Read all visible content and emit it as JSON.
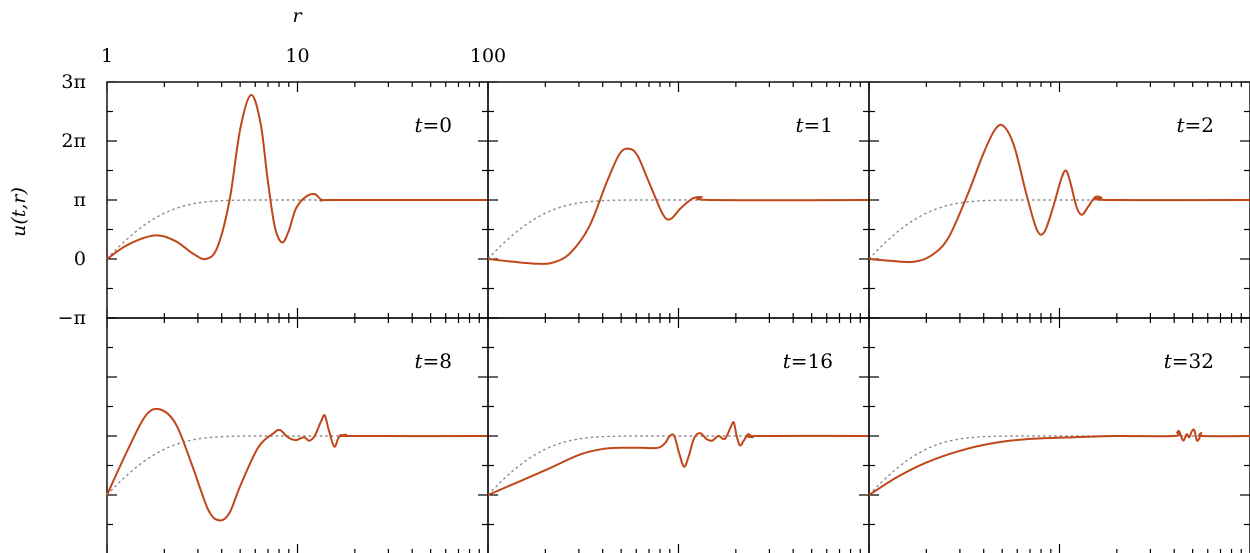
{
  "chart_data": {
    "type": "line",
    "xlabel": "r",
    "ylabel": "u(t,r)",
    "xscale": "log",
    "xlim": [
      1,
      100
    ],
    "ylim": [
      "-π",
      "3π"
    ],
    "xticks": [
      {
        "value": 1,
        "label": "1"
      },
      {
        "value": 10,
        "label": "10"
      },
      {
        "value": 100,
        "label": "100"
      }
    ],
    "yticks": [
      {
        "value": -1,
        "label": "−π"
      },
      {
        "value": 0,
        "label": "0"
      },
      {
        "value": 1,
        "label": "π"
      },
      {
        "value": 2,
        "label": "2π"
      },
      {
        "value": 3,
        "label": "3π"
      }
    ],
    "y_unit": "π",
    "grid": false,
    "panels": [
      {
        "title": "t=0",
        "t": "0",
        "curve": [
          [
            1,
            0
          ],
          [
            1.3,
            0.25
          ],
          [
            1.8,
            0.4
          ],
          [
            2.3,
            0.3
          ],
          [
            2.8,
            0.1
          ],
          [
            3.3,
            0.0
          ],
          [
            3.8,
            0.2
          ],
          [
            4.4,
            1.0
          ],
          [
            5.0,
            2.2
          ],
          [
            5.7,
            2.78
          ],
          [
            6.4,
            2.3
          ],
          [
            7.0,
            1.3
          ],
          [
            7.6,
            0.55
          ],
          [
            8.3,
            0.28
          ],
          [
            9.0,
            0.48
          ],
          [
            9.8,
            0.85
          ],
          [
            11.0,
            1.05
          ],
          [
            12.3,
            1.1
          ],
          [
            13.5,
            1.0
          ],
          [
            16,
            1.0
          ],
          [
            100,
            1.0
          ]
        ]
      },
      {
        "title": "t=1",
        "t": "1",
        "curve": [
          [
            1,
            0
          ],
          [
            1.3,
            -0.04
          ],
          [
            1.8,
            -0.08
          ],
          [
            2.2,
            -0.06
          ],
          [
            2.7,
            0.1
          ],
          [
            3.4,
            0.55
          ],
          [
            4.2,
            1.3
          ],
          [
            4.9,
            1.78
          ],
          [
            5.5,
            1.87
          ],
          [
            6.1,
            1.75
          ],
          [
            7.0,
            1.3
          ],
          [
            8.3,
            0.75
          ],
          [
            9.1,
            0.68
          ],
          [
            10.2,
            0.85
          ],
          [
            11.8,
            1.02
          ],
          [
            13.2,
            1.05
          ],
          [
            15,
            1.0
          ],
          [
            100,
            1.0
          ]
        ]
      },
      {
        "title": "t=2",
        "t": "2",
        "curve": [
          [
            1,
            0
          ],
          [
            1.3,
            -0.03
          ],
          [
            1.7,
            -0.05
          ],
          [
            2.1,
            0.05
          ],
          [
            2.6,
            0.35
          ],
          [
            3.3,
            1.1
          ],
          [
            4.0,
            1.8
          ],
          [
            4.6,
            2.2
          ],
          [
            5.1,
            2.25
          ],
          [
            5.8,
            1.9
          ],
          [
            6.7,
            1.1
          ],
          [
            7.6,
            0.5
          ],
          [
            8.3,
            0.45
          ],
          [
            9.2,
            0.85
          ],
          [
            10.2,
            1.35
          ],
          [
            10.8,
            1.5
          ],
          [
            11.4,
            1.3
          ],
          [
            12.3,
            0.88
          ],
          [
            13.1,
            0.75
          ],
          [
            14.1,
            0.88
          ],
          [
            15.4,
            1.05
          ],
          [
            16.6,
            1.04
          ],
          [
            18,
            1.0
          ],
          [
            100,
            1.0
          ]
        ]
      },
      {
        "title": "t=8",
        "t": "8",
        "curve": [
          [
            1,
            0
          ],
          [
            1.3,
            0.8
          ],
          [
            1.6,
            1.35
          ],
          [
            1.9,
            1.45
          ],
          [
            2.3,
            1.2
          ],
          [
            2.8,
            0.5
          ],
          [
            3.4,
            -0.25
          ],
          [
            3.9,
            -0.43
          ],
          [
            4.4,
            -0.3
          ],
          [
            5.0,
            0.15
          ],
          [
            6.2,
            0.8
          ],
          [
            7.5,
            1.05
          ],
          [
            8.1,
            1.1
          ],
          [
            8.9,
            0.98
          ],
          [
            9.8,
            0.93
          ],
          [
            10.8,
            0.98
          ],
          [
            11.5,
            0.92
          ],
          [
            12.3,
            1.0
          ],
          [
            13.3,
            1.25
          ],
          [
            13.9,
            1.35
          ],
          [
            14.6,
            1.1
          ],
          [
            15.6,
            0.82
          ],
          [
            16.5,
            0.98
          ],
          [
            18,
            1.02
          ],
          [
            19.2,
            1.0
          ],
          [
            100,
            1.0
          ]
        ]
      },
      {
        "title": "t=16",
        "t": "16",
        "curve": [
          [
            1,
            0
          ],
          [
            2,
            0.42
          ],
          [
            3,
            0.68
          ],
          [
            4,
            0.78
          ],
          [
            5,
            0.8
          ],
          [
            6.3,
            0.8
          ],
          [
            7.8,
            0.8
          ],
          [
            8.5,
            0.88
          ],
          [
            9.0,
            1.0
          ],
          [
            9.5,
            1.0
          ],
          [
            10.1,
            0.7
          ],
          [
            10.7,
            0.48
          ],
          [
            11.3,
            0.65
          ],
          [
            12.1,
            0.97
          ],
          [
            13.0,
            1.05
          ],
          [
            14.0,
            0.95
          ],
          [
            15.0,
            0.92
          ],
          [
            16.2,
            1.0
          ],
          [
            17.5,
            0.95
          ],
          [
            18.8,
            1.15
          ],
          [
            19.5,
            1.23
          ],
          [
            20.2,
            1.0
          ],
          [
            21,
            0.84
          ],
          [
            22,
            0.92
          ],
          [
            23.2,
            1.03
          ],
          [
            24.5,
            0.98
          ],
          [
            26,
            1.0
          ],
          [
            100,
            1.0
          ]
        ]
      },
      {
        "title": "t=32",
        "t": "32",
        "curve": [
          [
            1,
            0
          ],
          [
            1.4,
            0.3
          ],
          [
            2,
            0.55
          ],
          [
            3,
            0.75
          ],
          [
            4.5,
            0.88
          ],
          [
            7,
            0.95
          ],
          [
            12,
            0.98
          ],
          [
            20,
            1.0
          ],
          [
            40,
            1.0
          ],
          [
            41.5,
            1.06
          ],
          [
            42.5,
            1.08
          ],
          [
            44,
            0.95
          ],
          [
            45,
            0.93
          ],
          [
            46.5,
            1.03
          ],
          [
            48,
            0.98
          ],
          [
            49.5,
            1.08
          ],
          [
            51,
            1.1
          ],
          [
            52.5,
            0.93
          ],
          [
            54,
            0.95
          ],
          [
            55.5,
            1.05
          ],
          [
            57,
            1.0
          ],
          [
            100,
            1.0
          ]
        ]
      }
    ],
    "reference_curve_style": "dotted gray"
  }
}
